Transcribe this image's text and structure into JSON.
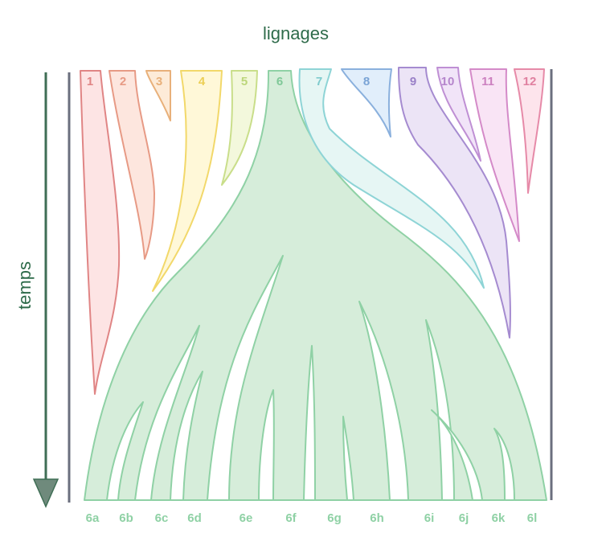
{
  "title": "lignages",
  "axis_label": "temps",
  "lineages": [
    "1",
    "2",
    "3",
    "4",
    "5",
    "6",
    "7",
    "8",
    "9",
    "10",
    "11",
    "12"
  ],
  "branches": [
    "6a",
    "6b",
    "6c",
    "6d",
    "6e",
    "6f",
    "6g",
    "6h",
    "6i",
    "6j",
    "6k",
    "6l"
  ]
}
